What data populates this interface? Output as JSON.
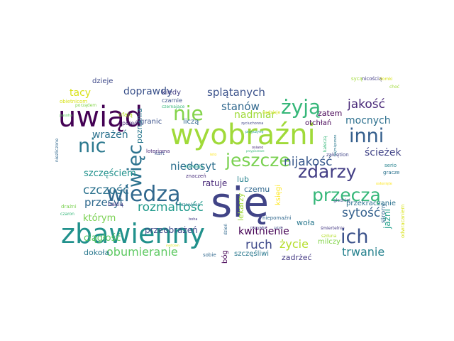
{
  "words": [
    {
      "text": "się",
      "color": "#414487"
    },
    {
      "text": "wyobraźni",
      "color": "#a0da39"
    },
    {
      "text": "uwiąd",
      "color": "#440154"
    },
    {
      "text": "zbawienny",
      "color": "#21918c"
    },
    {
      "text": "wiedzą",
      "color": "#31688e"
    },
    {
      "text": "przeczą",
      "color": "#35b779"
    },
    {
      "text": "jeszcze",
      "color": "#7ad151"
    },
    {
      "text": "zdarzy",
      "color": "#433e85"
    },
    {
      "text": "ich",
      "color": "#3b528b"
    },
    {
      "text": "nic",
      "color": "#2a788e"
    },
    {
      "text": "inni",
      "color": "#355f8d"
    },
    {
      "text": "żyją",
      "color": "#35b779"
    },
    {
      "text": "więc",
      "color": "#2c728e"
    },
    {
      "text": "nie",
      "color": "#84d44b"
    },
    {
      "text": "czczość",
      "color": "#2c728e"
    },
    {
      "text": "sytość",
      "color": "#34608d"
    },
    {
      "text": "rozmaitość",
      "color": "#1f998a"
    },
    {
      "text": "jakość",
      "color": "#482878"
    },
    {
      "text": "obumieranie",
      "color": "#5ec962"
    },
    {
      "text": "życie",
      "color": "#b5de2b"
    },
    {
      "text": "trwanie",
      "color": "#26828e"
    },
    {
      "text": "ruch",
      "color": "#3e4989"
    },
    {
      "text": "kwitnienie",
      "color": "#440154"
    },
    {
      "text": "nijakość",
      "color": "#38588c"
    },
    {
      "text": "niedosyt",
      "color": "#2d708e"
    },
    {
      "text": "przesyt",
      "color": "#306a8e"
    },
    {
      "text": "splątanych",
      "color": "#3b528b"
    },
    {
      "text": "stanów",
      "color": "#31688e"
    },
    {
      "text": "doprawdy",
      "color": "#3b528b"
    },
    {
      "text": "mocnych",
      "color": "#2d708e"
    },
    {
      "text": "ścieżek",
      "color": "#414487"
    },
    {
      "text": "nadmiar",
      "color": "#a0da39"
    },
    {
      "text": "wrażeń",
      "color": "#2c728e"
    },
    {
      "text": "szczęściem",
      "color": "#21918c"
    },
    {
      "text": "którym",
      "color": "#7ad151"
    },
    {
      "text": "ciągłość",
      "color": "#5ec962"
    },
    {
      "text": "przeobrażeń",
      "color": "#3e4989"
    },
    {
      "text": "tacy",
      "color": "#d8e219"
    },
    {
      "text": "poznania",
      "color": "#2a788e"
    },
    {
      "text": "ratuje",
      "color": "#482878"
    },
    {
      "text": "zatem",
      "color": "#440154"
    },
    {
      "text": "przekraczanie",
      "color": "#2c728e"
    },
    {
      "text": "dokoła",
      "color": "#2a788e"
    },
    {
      "text": "zadrżeć",
      "color": "#443983"
    },
    {
      "text": "czemu",
      "color": "#31688e"
    },
    {
      "text": "lub",
      "color": "#26828e"
    },
    {
      "text": "woła",
      "color": "#2a788e"
    },
    {
      "text": "jaźni",
      "color": "#1f9e89"
    },
    {
      "text": "kiedy",
      "color": "#433e85"
    },
    {
      "text": "dzieje",
      "color": "#3e4989"
    },
    {
      "text": "granic",
      "color": "#3b528b"
    },
    {
      "text": "liczą",
      "color": "#31688e"
    },
    {
      "text": "otchłań",
      "color": "#440154"
    },
    {
      "text": "lekarzy",
      "color": "#a0da39"
    },
    {
      "text": "księgi",
      "color": "#fde725"
    },
    {
      "text": "bóg",
      "color": "#440154"
    },
    {
      "text": "szczęśliwi",
      "color": "#2a788e"
    },
    {
      "text": "milczy",
      "color": "#84d44b"
    },
    {
      "text": "serio",
      "color": "#26828e"
    },
    {
      "text": "strony",
      "color": "#31688e"
    },
    {
      "text": "czarnie",
      "color": "#3b528b"
    },
    {
      "text": "pojęć",
      "color": "#482878"
    },
    {
      "text": "ufają",
      "color": "#b5de2b"
    },
    {
      "text": "bakią",
      "color": "#443983"
    },
    {
      "text": "kart",
      "color": "#3b528b"
    },
    {
      "text": "loterioma",
      "color": "#482878"
    },
    {
      "text": "znaczeń",
      "color": "#472d7b"
    },
    {
      "text": "niepomaźni",
      "color": "#31688e"
    },
    {
      "text": "nicością",
      "color": "#433e85"
    },
    {
      "text": "sycą",
      "color": "#a0da39"
    },
    {
      "text": "domki",
      "color": "#d8e219"
    },
    {
      "text": "zakiętion",
      "color": "#414487"
    },
    {
      "text": "gracze",
      "color": "#2c728e"
    },
    {
      "text": "przyczynę",
      "color": "#1f9e89"
    },
    {
      "text": "czernające",
      "color": "#35b779"
    },
    {
      "text": "nadzieje",
      "color": "#d8e219"
    },
    {
      "text": "zyciuchonna",
      "color": "#414487"
    },
    {
      "text": "dzień",
      "color": "#31688e"
    },
    {
      "text": "obietnicom",
      "color": "#d8e219"
    },
    {
      "text": "porządem",
      "color": "#84d44b"
    },
    {
      "text": "głodniej",
      "color": "#3b528b"
    },
    {
      "text": "śmiertelnie",
      "color": "#443983"
    },
    {
      "text": "sobie",
      "color": "#31688e"
    },
    {
      "text": "szduna",
      "color": "#b5de2b"
    },
    {
      "text": "odwracaniem",
      "color": "#d8e219"
    },
    {
      "text": "drażni",
      "color": "#7ad151"
    },
    {
      "text": "czaron",
      "color": "#35b779"
    },
    {
      "text": "rozrywka",
      "color": "#443983"
    },
    {
      "text": "pasoha",
      "color": "#5ec962"
    },
    {
      "text": "kałeczą",
      "color": "#35b779"
    },
    {
      "text": "stawsają",
      "color": "#1f9e89"
    },
    {
      "text": "niezliczone",
      "color": "#31688e"
    },
    {
      "text": "najmięszsze",
      "color": "#2a788e"
    },
    {
      "text": "mistrzem",
      "color": "#d8e219"
    },
    {
      "text": "zaśnie",
      "color": "#3b528b"
    },
    {
      "text": "choć",
      "color": "#a0da39"
    },
    {
      "text": "szawkian",
      "color": "#26828e"
    },
    {
      "text": "osłonięte",
      "color": "#fde725"
    },
    {
      "text": "boha",
      "color": "#443983"
    },
    {
      "text": "ieto",
      "color": "#fde725"
    },
    {
      "text": "osiano",
      "color": "#482878"
    },
    {
      "text": "przypiszesze",
      "color": "#35b779"
    }
  ]
}
